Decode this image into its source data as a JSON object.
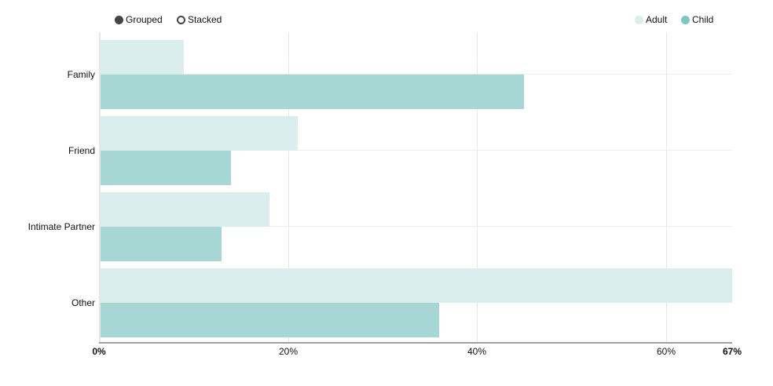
{
  "controls": {
    "mode_options": [
      {
        "label": "Grouped",
        "selected": true
      },
      {
        "label": "Stacked",
        "selected": false
      }
    ]
  },
  "legend": {
    "items": [
      {
        "label": "Adult",
        "color": "#d9eeed"
      },
      {
        "label": "Child",
        "color": "#a6d7d4"
      }
    ]
  },
  "axis": {
    "x_ticks": [
      "0%",
      "20%",
      "40%",
      "60%",
      "67%"
    ]
  },
  "chart_data": {
    "type": "bar",
    "orientation": "horizontal",
    "mode": "grouped",
    "title": "",
    "xlabel": "",
    "ylabel": "",
    "categories": [
      "Family",
      "Friend",
      "Intimate Partner",
      "Other"
    ],
    "series": [
      {
        "name": "Adult",
        "color": "#d9eeed",
        "values": [
          9,
          21,
          18,
          67
        ]
      },
      {
        "name": "Child",
        "color": "#a6d7d4",
        "values": [
          45,
          14,
          13,
          36
        ]
      }
    ],
    "xlim": [
      0,
      67
    ],
    "x_ticks": [
      0,
      20,
      40,
      60,
      67
    ],
    "x_tick_format": "percent",
    "grid": true,
    "legend_position": "top-right"
  }
}
